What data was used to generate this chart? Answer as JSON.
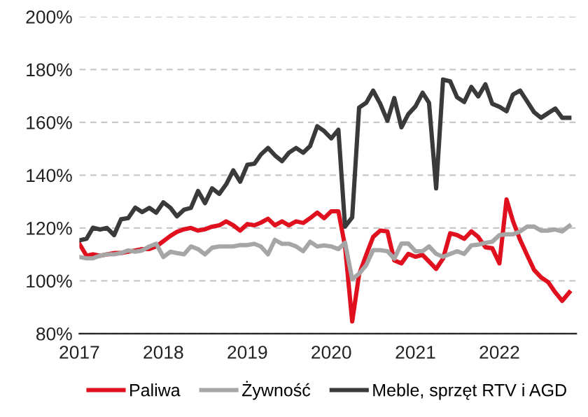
{
  "chart_data": {
    "type": "line",
    "x": [
      "2017-01",
      "2017-02",
      "2017-03",
      "2017-04",
      "2017-05",
      "2017-06",
      "2017-07",
      "2017-08",
      "2017-09",
      "2017-10",
      "2017-11",
      "2017-12",
      "2018-01",
      "2018-02",
      "2018-03",
      "2018-04",
      "2018-05",
      "2018-06",
      "2018-07",
      "2018-08",
      "2018-09",
      "2018-10",
      "2018-11",
      "2018-12",
      "2019-01",
      "2019-02",
      "2019-03",
      "2019-04",
      "2019-05",
      "2019-06",
      "2019-07",
      "2019-08",
      "2019-09",
      "2019-10",
      "2019-11",
      "2019-12",
      "2020-01",
      "2020-02",
      "2020-03",
      "2020-04",
      "2020-05",
      "2020-06",
      "2020-07",
      "2020-08",
      "2020-09",
      "2020-10",
      "2020-11",
      "2020-12",
      "2021-01",
      "2021-02",
      "2021-03",
      "2021-04",
      "2021-05",
      "2021-06",
      "2021-07",
      "2021-08",
      "2021-09",
      "2021-10",
      "2021-11",
      "2021-12",
      "2022-01",
      "2022-02",
      "2022-03",
      "2022-04",
      "2022-05",
      "2022-06",
      "2022-07",
      "2022-08",
      "2022-09",
      "2022-10",
      "2022-11"
    ],
    "series": [
      {
        "name": "Paliwa",
        "color": "#e0101e",
        "values": [
          114,
          109.5,
          110,
          109.5,
          110,
          110.5,
          110.5,
          111,
          111.5,
          112,
          112,
          113,
          115,
          117,
          118.5,
          119.5,
          120,
          119,
          119.5,
          120.5,
          121,
          122.5,
          121,
          119,
          121.5,
          121,
          122,
          123.5,
          121,
          122.5,
          121,
          122.5,
          121.9,
          123.7,
          125.8,
          123.7,
          126.3,
          126.3,
          113,
          84.6,
          102.4,
          109.8,
          116.6,
          119,
          118.7,
          107.7,
          106.6,
          110.2,
          109.1,
          109.8,
          107.3,
          104.5,
          108.4,
          118,
          117.3,
          115.9,
          118.7,
          116.6,
          112.7,
          112.3,
          106.6,
          130.8,
          122.6,
          115.5,
          109.8,
          104.1,
          101.3,
          99.5,
          95.6,
          92.4,
          95.6
        ]
      },
      {
        "name": "Żywność",
        "color": "#a6a6a6",
        "values": [
          109,
          108.5,
          108.5,
          109.5,
          110,
          110,
          110.5,
          111.5,
          111,
          111.5,
          113,
          114,
          109,
          111,
          110.5,
          110,
          113,
          112,
          110,
          112.5,
          113,
          113,
          113,
          113.5,
          113.5,
          114,
          113,
          110,
          115.5,
          114,
          114,
          113,
          111.2,
          114.8,
          113,
          113.4,
          113,
          112,
          114.4,
          100.6,
          102.7,
          105.9,
          111.6,
          111.6,
          111.2,
          108.4,
          114.1,
          114.1,
          111.2,
          111.2,
          113,
          110.2,
          109.1,
          110.2,
          111.2,
          110.2,
          113.4,
          113.7,
          114.4,
          114.8,
          117.3,
          117.6,
          117.6,
          118.7,
          120.5,
          120.5,
          119,
          119,
          119.4,
          118.7,
          120.8
        ]
      },
      {
        "name": "Meble, sprzęt RTV i AGD",
        "color": "#3a3a3a",
        "values": [
          115.3,
          115.9,
          120.1,
          119.4,
          120,
          117.3,
          123.3,
          123.7,
          127.7,
          126,
          127.6,
          125.8,
          129.7,
          127.6,
          124.4,
          126.9,
          127.6,
          134,
          129.4,
          135,
          132.9,
          136.5,
          141.8,
          137.5,
          143.9,
          144.3,
          147.8,
          150.3,
          147.5,
          145.3,
          148.5,
          150.3,
          148.5,
          151,
          158.5,
          156.7,
          153.9,
          157.2,
          120.5,
          124,
          165.6,
          167.4,
          172,
          167,
          160.6,
          169.2,
          158.1,
          163.1,
          166,
          171.2,
          167.4,
          135,
          176.2,
          175.5,
          169.5,
          167.7,
          173.4,
          169.8,
          174.4,
          167,
          165.9,
          164.2,
          170.5,
          172,
          168,
          163.8,
          161.7,
          163.5,
          165.2,
          161.7,
          161.7
        ]
      }
    ],
    "xlim": [
      "2017-01",
      "2022-12"
    ],
    "xticks": [
      {
        "value": "2017-01",
        "label": "2017"
      },
      {
        "value": "2018-01",
        "label": "2018"
      },
      {
        "value": "2019-01",
        "label": "2019"
      },
      {
        "value": "2020-01",
        "label": "2020"
      },
      {
        "value": "2021-01",
        "label": "2021"
      },
      {
        "value": "2022-01",
        "label": "2022"
      }
    ],
    "ylim": [
      80,
      200
    ],
    "yticks": [
      {
        "value": 80,
        "label": "80%"
      },
      {
        "value": 100,
        "label": "100%"
      },
      {
        "value": 120,
        "label": "120%"
      },
      {
        "value": 140,
        "label": "140%"
      },
      {
        "value": 160,
        "label": "160%"
      },
      {
        "value": 180,
        "label": "180%"
      },
      {
        "value": 200,
        "label": "200%"
      }
    ],
    "grid": "y",
    "legend": "bottom",
    "line_style": "solid",
    "marker": "none"
  }
}
